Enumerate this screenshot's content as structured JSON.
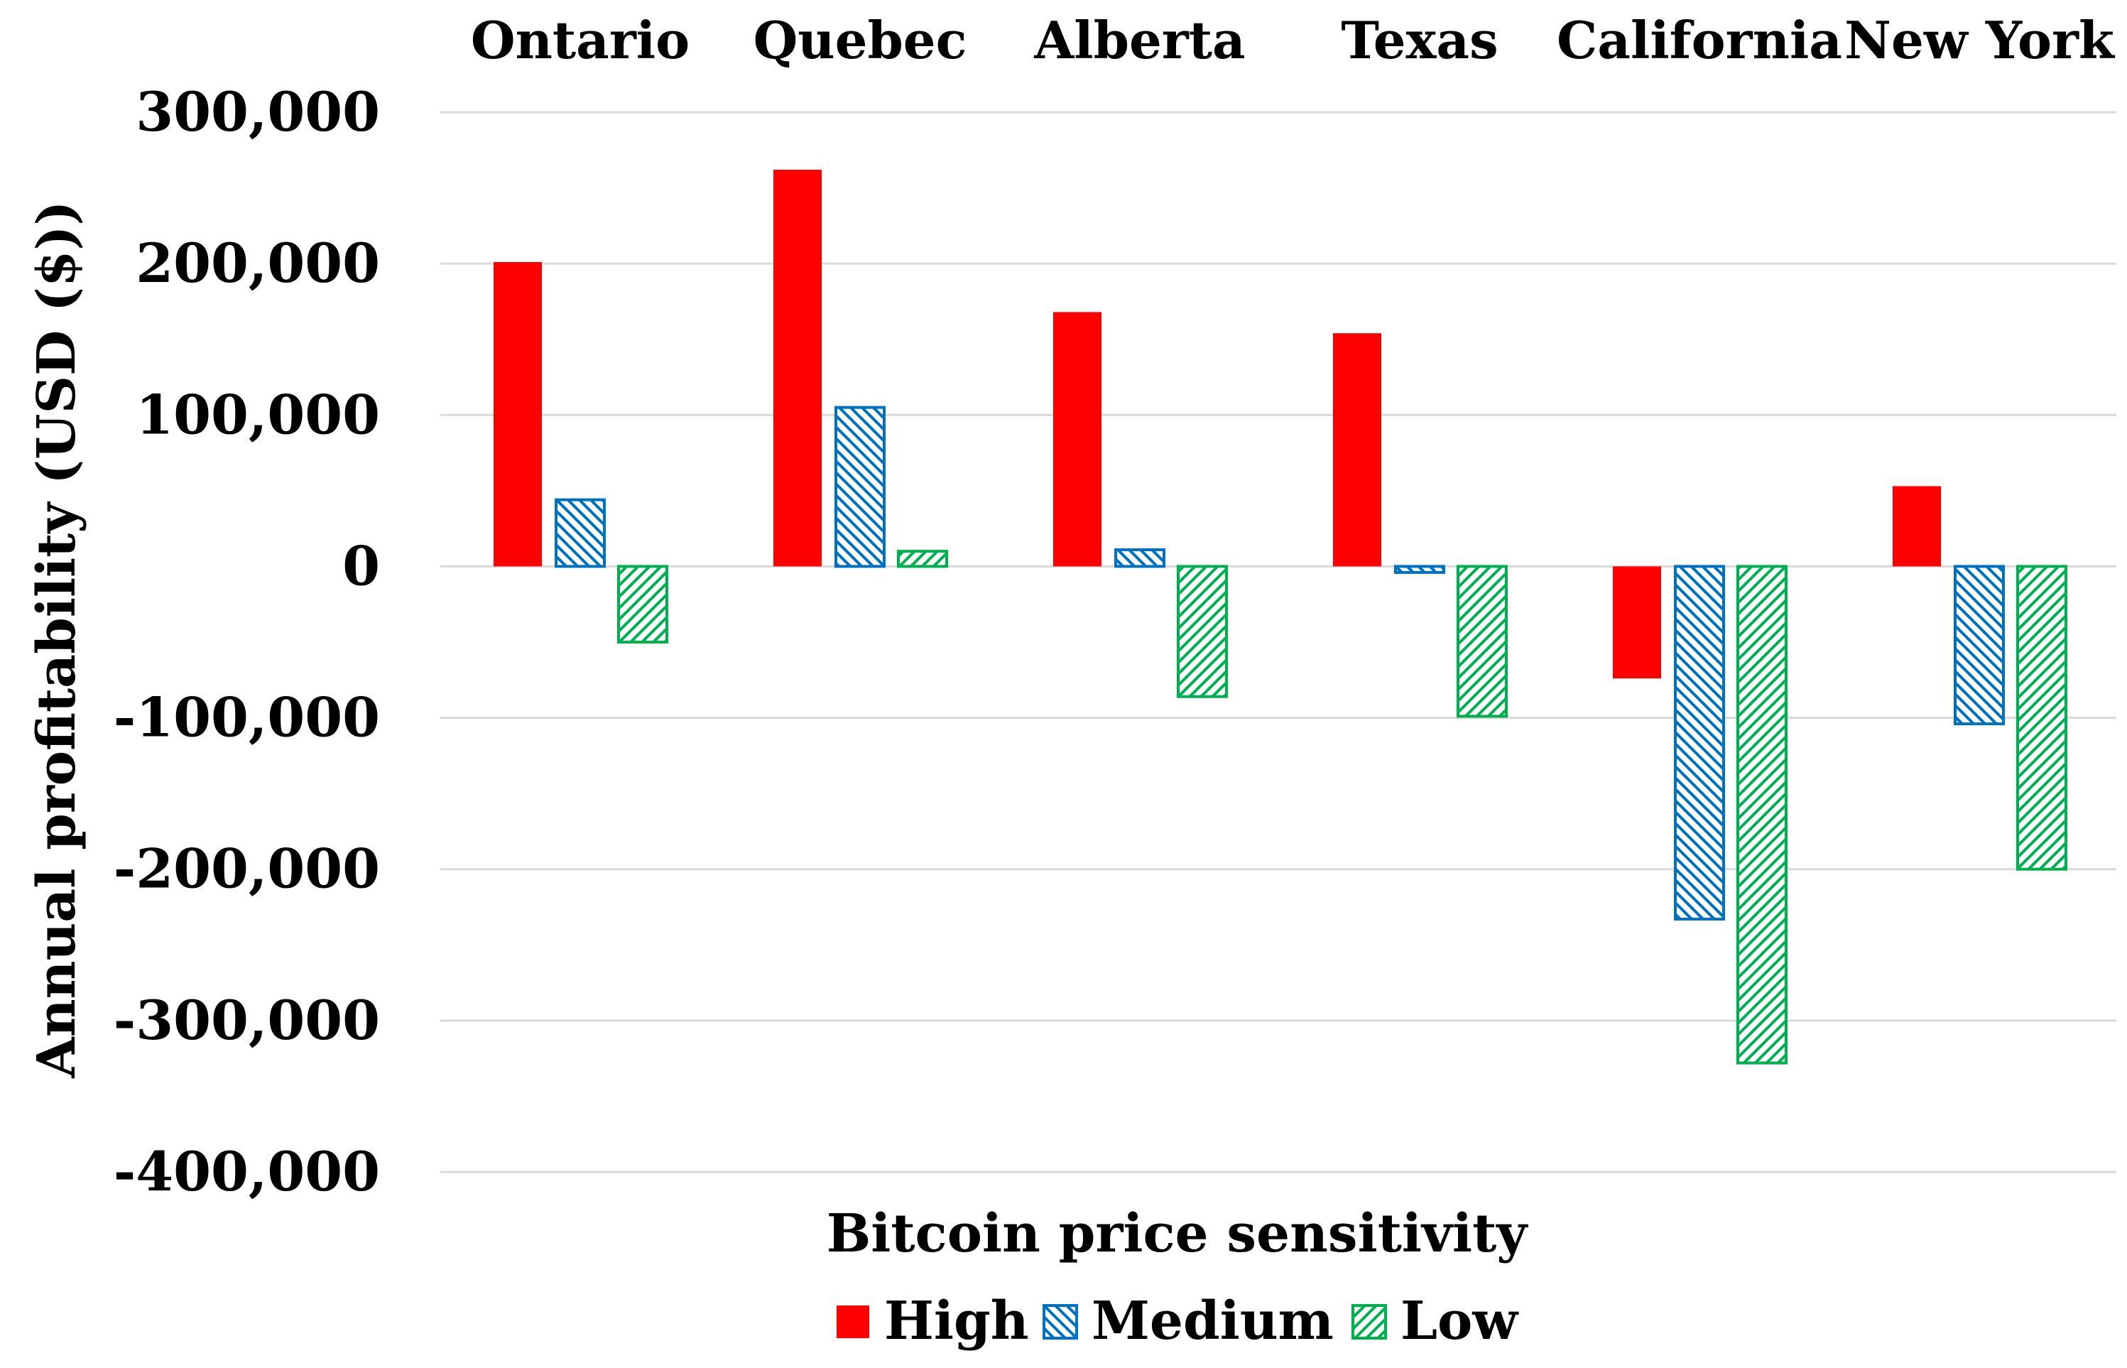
{
  "chart_data": {
    "type": "bar",
    "title": "",
    "xlabel": "Bitcoin price sensitivity",
    "ylabel": "Annual profitability (USD ($))",
    "categories": [
      "Ontario",
      "Quebec",
      "Alberta",
      "Texas",
      "California",
      "New York"
    ],
    "series": [
      {
        "name": "High",
        "pattern": "solid",
        "color": "#ff0000",
        "values": [
          201000,
          262000,
          168000,
          154000,
          -74000,
          53000
        ]
      },
      {
        "name": "Medium",
        "pattern": "diagonal-down",
        "color": "#0070c0",
        "values": [
          44000,
          105000,
          11000,
          -4000,
          -233000,
          -104000
        ]
      },
      {
        "name": "Low",
        "pattern": "diagonal-up",
        "color": "#00b050",
        "values": [
          -50000,
          10000,
          -86000,
          -99000,
          -328000,
          -200000
        ]
      }
    ],
    "ylim": [
      -400000,
      300000
    ],
    "yticks": [
      300000,
      200000,
      100000,
      0,
      -100000,
      -200000,
      -300000,
      -400000
    ],
    "ytick_labels": [
      "300,000",
      "200,000",
      "100,000",
      "0",
      "-100,000",
      "-200,000",
      "-300,000",
      "-400,000"
    ],
    "grid": true,
    "legend_position": "bottom"
  }
}
